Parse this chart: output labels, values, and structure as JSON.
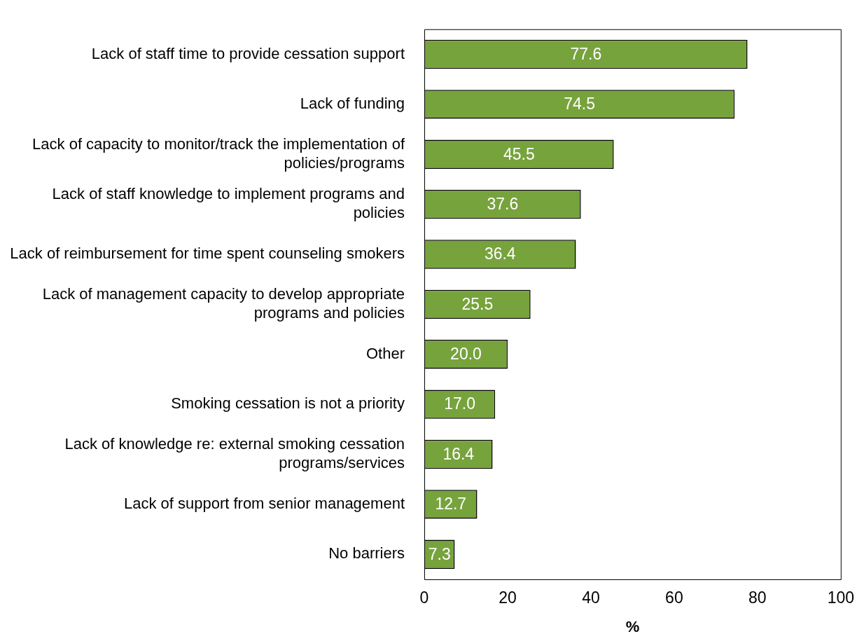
{
  "chart_data": {
    "type": "bar",
    "orientation": "horizontal",
    "xlabel": "%",
    "categories": [
      "Lack of staff time to provide cessation support",
      "Lack of funding",
      "Lack of capacity to monitor/track the implementation of policies/programs",
      "Lack of staff knowledge to implement programs and policies",
      "Lack of reimbursement for time spent counseling smokers",
      "Lack of management capacity to develop appropriate programs and policies",
      "Other",
      "Smoking cessation is not a priority",
      "Lack of knowledge re: external smoking cessation programs/services",
      "Lack of support from senior management",
      "No barriers"
    ],
    "values": [
      77.6,
      74.5,
      45.5,
      37.6,
      36.4,
      25.5,
      20.0,
      17.0,
      16.4,
      12.7,
      7.3
    ],
    "value_labels": [
      "77.6",
      "74.5",
      "45.5",
      "37.6",
      "36.4",
      "25.5",
      "20.0",
      "17.0",
      "16.4",
      "12.7",
      "7.3"
    ],
    "color": "#77a33c",
    "xlim": [
      0,
      100
    ],
    "xticks": [
      0,
      20,
      40,
      60,
      80,
      100
    ],
    "grid": false,
    "legend": false
  }
}
